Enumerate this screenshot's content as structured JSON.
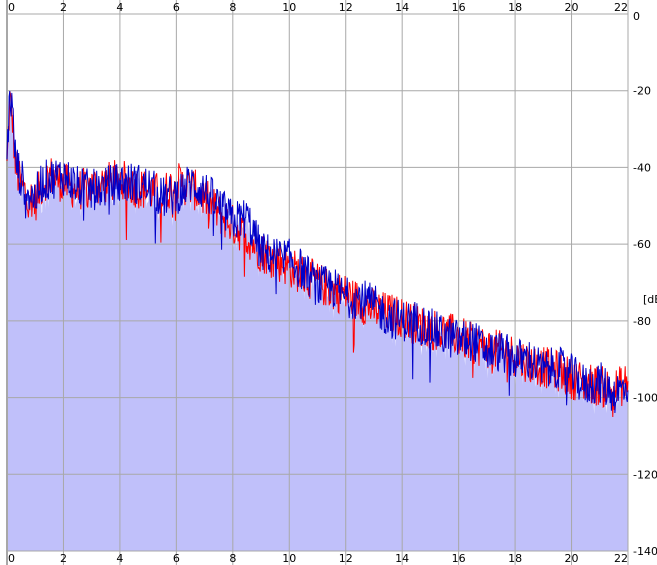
{
  "chart_data": {
    "type": "area",
    "title": "",
    "xlabel": "",
    "ylabel": "[dB]",
    "x_tick_labels": [
      "0",
      "2",
      "4",
      "6",
      "8",
      "10",
      "12",
      "14",
      "16",
      "18",
      "20",
      "22"
    ],
    "y_tick_labels": [
      "0",
      "-20",
      "-40",
      "-60",
      "-80",
      "-100",
      "-120",
      "-140"
    ],
    "x_ticks": [
      0,
      2,
      4,
      6,
      8,
      10,
      12,
      14,
      16,
      18,
      20,
      22
    ],
    "y_ticks": [
      0,
      -20,
      -40,
      -60,
      -80,
      -100,
      -120,
      -140
    ],
    "xlim": [
      0,
      22
    ],
    "ylim": [
      -140,
      0
    ],
    "grid": true,
    "colors": {
      "background": "#ffffff",
      "grid": "#a8a8a8",
      "fill": "#c0c0fa",
      "red": "#ff0000",
      "blue": "#0000c8"
    },
    "series": [
      {
        "color": "red",
        "x": [
          0,
          0.1,
          0.2,
          0.3,
          0.5,
          0.8,
          1,
          1.2,
          1.5,
          2,
          2.5,
          3,
          3.5,
          4,
          4.5,
          5,
          5.5,
          6,
          6.5,
          7,
          7.5,
          8,
          8.5,
          9,
          9.5,
          10,
          10.5,
          11,
          11.5,
          12,
          12.5,
          13,
          13.5,
          14,
          14.5,
          15,
          15.5,
          16,
          16.5,
          17,
          17.5,
          18,
          18.5,
          19,
          19.5,
          20,
          20.5,
          21,
          21.5,
          22
        ],
        "y": [
          -40,
          -22,
          -28,
          -40,
          -45,
          -48,
          -49,
          -45,
          -42,
          -44,
          -46,
          -45,
          -44,
          -43,
          -45,
          -46,
          -47,
          -44,
          -45,
          -48,
          -52,
          -55,
          -58,
          -62,
          -64,
          -66,
          -68,
          -70,
          -72,
          -73,
          -75,
          -77,
          -78,
          -79,
          -81,
          -82,
          -83,
          -84,
          -86,
          -87,
          -88,
          -89,
          -91,
          -92,
          -93,
          -95,
          -96,
          -97,
          -98,
          -96
        ]
      },
      {
        "color": "blue",
        "x": [
          0,
          0.1,
          0.2,
          0.3,
          0.5,
          0.8,
          1,
          1.2,
          1.5,
          2,
          2.5,
          3,
          3.5,
          4,
          4.5,
          5,
          5.5,
          6,
          6.5,
          7,
          7.5,
          8,
          8.5,
          9,
          9.5,
          10,
          10.5,
          11,
          11.5,
          12,
          12.5,
          13,
          13.5,
          14,
          14.5,
          15,
          15.5,
          16,
          16.5,
          17,
          17.5,
          18,
          18.5,
          19,
          19.5,
          20,
          20.5,
          21,
          21.5,
          22
        ],
        "y": [
          -38,
          -20,
          -26,
          -38,
          -43,
          -47,
          -48,
          -44,
          -43,
          -42,
          -45,
          -46,
          -45,
          -44,
          -44,
          -45,
          -48,
          -47,
          -44,
          -46,
          -50,
          -54,
          -53,
          -62,
          -63,
          -64,
          -67,
          -71,
          -71,
          -74,
          -74,
          -76,
          -79,
          -80,
          -80,
          -82,
          -84,
          -85,
          -85,
          -88,
          -88,
          -90,
          -90,
          -93,
          -92,
          -94,
          -97,
          -96,
          -99,
          -97
        ]
      }
    ]
  }
}
